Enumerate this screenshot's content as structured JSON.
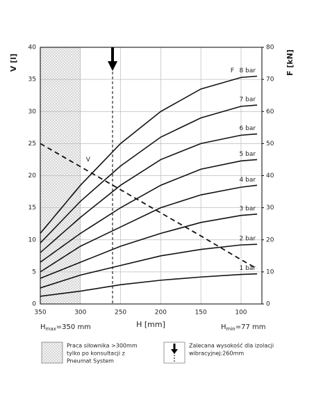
{
  "chart_data": {
    "type": "line",
    "x_label": "H [mm]",
    "y_label": "V [l]",
    "y2_label": "F [kN]",
    "x": [
      350,
      300,
      250,
      200,
      150,
      100,
      80
    ],
    "xlim": [
      350,
      74
    ],
    "xticks": [
      350,
      300,
      250,
      200,
      150,
      100
    ],
    "ylim": [
      0,
      40
    ],
    "yticks": [
      0,
      5,
      10,
      15,
      20,
      25,
      30,
      35,
      40
    ],
    "y2lim": [
      0,
      80
    ],
    "y2ticks": [
      0,
      10,
      20,
      30,
      40,
      50,
      60,
      70,
      80
    ],
    "grid": true,
    "series": [
      {
        "name": "8 bar",
        "color": "#111111",
        "axis": "y2",
        "values": [
          22,
          37,
          50,
          60,
          67,
          70.6,
          71
        ]
      },
      {
        "name": "7 bar",
        "color": "#111111",
        "axis": "y2",
        "values": [
          19,
          32,
          43,
          52,
          58,
          61.6,
          62
        ]
      },
      {
        "name": "6 bar",
        "color": "#111111",
        "axis": "y2",
        "values": [
          16,
          27,
          37,
          45,
          50,
          52.6,
          53
        ]
      },
      {
        "name": "5 bar",
        "color": "#111111",
        "axis": "y2",
        "values": [
          13,
          22,
          30,
          37,
          42,
          44.6,
          45
        ]
      },
      {
        "name": "4 bar",
        "color": "#111111",
        "axis": "y2",
        "values": [
          10,
          18,
          24,
          30,
          34,
          36.4,
          37
        ]
      },
      {
        "name": "3 bar",
        "color": "#111111",
        "axis": "y2",
        "values": [
          8,
          13,
          18,
          22,
          25.4,
          27.6,
          28
        ]
      },
      {
        "name": "2 bar",
        "color": "#111111",
        "axis": "y2",
        "values": [
          5,
          9,
          12,
          15,
          17,
          18.4,
          18.6
        ]
      },
      {
        "name": "1 bar",
        "color": "#111111",
        "axis": "y2",
        "values": [
          2.4,
          4,
          6,
          7.4,
          8.4,
          9.2,
          9.4
        ]
      },
      {
        "name": "V",
        "color": "#111111",
        "dashed": true,
        "values": [
          25,
          21.4,
          17.8,
          14.2,
          10.6,
          6.9,
          5.5
        ]
      }
    ],
    "f_marker": "F",
    "hatched_range": [
      350,
      300
    ],
    "recommended_h": 260,
    "h_max": {
      "symbol": "H",
      "sub": "max",
      "text": "=350 mm"
    },
    "h_min": {
      "symbol": "H",
      "sub": "min",
      "text": "=77 mm"
    }
  },
  "legend_notes": [
    {
      "lines": [
        "Praca siłownika >300mm",
        "tylko po konsultacji z",
        "Pneumat System"
      ]
    },
    {
      "lines": [
        "Zalecana wysokość dla izolacji",
        "wibracyjnej:260mm"
      ]
    }
  ]
}
